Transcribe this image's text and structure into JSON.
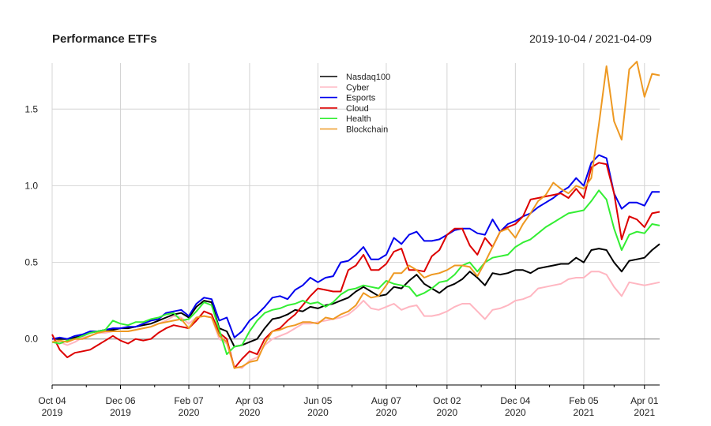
{
  "chart_data": {
    "type": "line",
    "title": "Performance ETFs",
    "date_range": "2019-10-04 / 2021-04-09",
    "xlabel": "",
    "ylabel": "",
    "ylim": [
      -0.3,
      1.8
    ],
    "y_ticks": [
      {
        "value": 0.0,
        "label": "0.0"
      },
      {
        "value": 0.5,
        "label": "0.5"
      },
      {
        "value": 1.0,
        "label": "1.0"
      },
      {
        "value": 1.5,
        "label": "1.5"
      }
    ],
    "x_ticks": [
      {
        "index": 0,
        "label1": "Oct 04",
        "label2": "2019"
      },
      {
        "index": 9,
        "label1": "Dec 06",
        "label2": "2019"
      },
      {
        "index": 18,
        "label1": "Feb 07",
        "label2": "2020"
      },
      {
        "index": 26,
        "label1": "Apr 03",
        "label2": "2020"
      },
      {
        "index": 35,
        "label1": "Jun 05",
        "label2": "2020"
      },
      {
        "index": 44,
        "label1": "Aug 07",
        "label2": "2020"
      },
      {
        "index": 52,
        "label1": "Oct 02",
        "label2": "2020"
      },
      {
        "index": 61,
        "label1": "Dec 04",
        "label2": "2020"
      },
      {
        "index": 70,
        "label1": "Feb 05",
        "label2": "2021"
      },
      {
        "index": 78,
        "label1": "Apr 01",
        "label2": "2021"
      }
    ],
    "grid": true,
    "legend": "top-center",
    "series": [
      {
        "name": "Nasdaq100",
        "color": "#000000",
        "values": [
          0,
          0,
          0,
          0.01,
          0.02,
          0.04,
          0.05,
          0.06,
          0.06,
          0.07,
          0.07,
          0.08,
          0.09,
          0.1,
          0.12,
          0.14,
          0.16,
          0.17,
          0.14,
          0.21,
          0.25,
          0.24,
          0.07,
          0.05,
          -0.05,
          -0.04,
          -0.02,
          0,
          0.07,
          0.13,
          0.14,
          0.16,
          0.19,
          0.18,
          0.21,
          0.2,
          0.22,
          0.23,
          0.25,
          0.27,
          0.31,
          0.34,
          0.31,
          0.28,
          0.29,
          0.34,
          0.33,
          0.38,
          0.42,
          0.36,
          0.33,
          0.3,
          0.34,
          0.36,
          0.39,
          0.44,
          0.4,
          0.35,
          0.43,
          0.42,
          0.43,
          0.45,
          0.45,
          0.43,
          0.46,
          0.47,
          0.48,
          0.49,
          0.49,
          0.53,
          0.5,
          0.58,
          0.59,
          0.58,
          0.5,
          0.44,
          0.51,
          0.52,
          0.53,
          0.58,
          0.62
        ]
      },
      {
        "name": "Cyber",
        "color": "#ffb6c1",
        "values": [
          0,
          -0.02,
          -0.04,
          -0.02,
          0.01,
          0.02,
          0.04,
          0.04,
          0.05,
          0.05,
          0.05,
          0.06,
          0.07,
          0.08,
          0.1,
          0.12,
          0.15,
          0.14,
          0.1,
          0.14,
          0.15,
          0.14,
          0,
          -0.03,
          -0.18,
          -0.19,
          -0.14,
          -0.12,
          -0.04,
          0,
          0.02,
          0.04,
          0.07,
          0.1,
          0.1,
          0.11,
          0.12,
          0.13,
          0.14,
          0.16,
          0.2,
          0.25,
          0.2,
          0.19,
          0.21,
          0.23,
          0.19,
          0.21,
          0.22,
          0.15,
          0.15,
          0.16,
          0.18,
          0.21,
          0.23,
          0.23,
          0.18,
          0.13,
          0.19,
          0.2,
          0.22,
          0.25,
          0.26,
          0.28,
          0.33,
          0.34,
          0.35,
          0.36,
          0.39,
          0.4,
          0.4,
          0.44,
          0.44,
          0.42,
          0.34,
          0.28,
          0.37,
          0.36,
          0.35,
          0.36,
          0.37
        ]
      },
      {
        "name": "Esports",
        "color": "#0000ee",
        "values": [
          0,
          0.01,
          0,
          0.02,
          0.03,
          0.05,
          0.05,
          0.06,
          0.07,
          0.07,
          0.08,
          0.08,
          0.1,
          0.12,
          0.13,
          0.17,
          0.18,
          0.19,
          0.15,
          0.23,
          0.27,
          0.26,
          0.12,
          0.14,
          0.01,
          0.05,
          0.12,
          0.16,
          0.21,
          0.27,
          0.28,
          0.26,
          0.32,
          0.35,
          0.4,
          0.37,
          0.4,
          0.41,
          0.5,
          0.51,
          0.55,
          0.6,
          0.52,
          0.52,
          0.55,
          0.66,
          0.62,
          0.68,
          0.7,
          0.64,
          0.64,
          0.65,
          0.68,
          0.71,
          0.72,
          0.72,
          0.69,
          0.68,
          0.78,
          0.7,
          0.75,
          0.77,
          0.8,
          0.82,
          0.86,
          0.89,
          0.92,
          0.96,
          0.99,
          1.05,
          1.0,
          1.15,
          1.2,
          1.18,
          0.95,
          0.85,
          0.89,
          0.89,
          0.87,
          0.96,
          0.96
        ]
      },
      {
        "name": "Cloud",
        "color": "#dd0000",
        "values": [
          0.03,
          -0.07,
          -0.12,
          -0.09,
          -0.08,
          -0.07,
          -0.04,
          -0.01,
          0.02,
          -0.01,
          -0.03,
          0,
          -0.01,
          0,
          0.04,
          0.07,
          0.09,
          0.08,
          0.07,
          0.12,
          0.18,
          0.16,
          0.04,
          0,
          -0.19,
          -0.13,
          -0.08,
          -0.1,
          0,
          0.05,
          0.07,
          0.12,
          0.16,
          0.22,
          0.28,
          0.33,
          0.32,
          0.31,
          0.31,
          0.45,
          0.48,
          0.55,
          0.45,
          0.45,
          0.49,
          0.57,
          0.59,
          0.45,
          0.45,
          0.44,
          0.54,
          0.58,
          0.68,
          0.72,
          0.72,
          0.61,
          0.55,
          0.66,
          0.6,
          0.7,
          0.73,
          0.75,
          0.8,
          0.91,
          0.92,
          0.93,
          0.94,
          0.95,
          0.92,
          0.98,
          0.92,
          1.12,
          1.15,
          1.14,
          0.95,
          0.65,
          0.8,
          0.78,
          0.73,
          0.82,
          0.83
        ]
      },
      {
        "name": "Health",
        "color": "#33ee33",
        "values": [
          -0.02,
          -0.03,
          -0.01,
          0,
          0.02,
          0.04,
          0.05,
          0.06,
          0.12,
          0.1,
          0.09,
          0.11,
          0.11,
          0.13,
          0.14,
          0.16,
          0.17,
          0.12,
          0.13,
          0.18,
          0.24,
          0.22,
          0.06,
          -0.1,
          -0.05,
          -0.04,
          0.05,
          0.12,
          0.17,
          0.19,
          0.2,
          0.22,
          0.23,
          0.25,
          0.23,
          0.24,
          0.21,
          0.24,
          0.29,
          0.32,
          0.33,
          0.35,
          0.34,
          0.33,
          0.38,
          0.36,
          0.35,
          0.34,
          0.28,
          0.3,
          0.33,
          0.37,
          0.38,
          0.42,
          0.48,
          0.5,
          0.44,
          0.5,
          0.53,
          0.54,
          0.55,
          0.6,
          0.63,
          0.65,
          0.69,
          0.73,
          0.76,
          0.79,
          0.82,
          0.83,
          0.84,
          0.9,
          0.97,
          0.91,
          0.72,
          0.58,
          0.68,
          0.7,
          0.69,
          0.75,
          0.74
        ]
      },
      {
        "name": "Blockchain",
        "color": "#ee9922",
        "values": [
          -0.02,
          -0.01,
          -0.02,
          0,
          0,
          0.02,
          0.04,
          0.05,
          0.05,
          0.05,
          0.05,
          0.06,
          0.07,
          0.08,
          0.1,
          0.11,
          0.12,
          0.13,
          0.07,
          0.14,
          0.15,
          0.14,
          0.02,
          -0.02,
          -0.19,
          -0.18,
          -0.15,
          -0.14,
          -0.03,
          0.05,
          0.06,
          0.08,
          0.09,
          0.11,
          0.11,
          0.1,
          0.14,
          0.13,
          0.16,
          0.18,
          0.22,
          0.3,
          0.27,
          0.28,
          0.35,
          0.43,
          0.43,
          0.48,
          0.45,
          0.4,
          0.42,
          0.43,
          0.45,
          0.48,
          0.48,
          0.47,
          0.41,
          0.5,
          0.6,
          0.7,
          0.72,
          0.66,
          0.75,
          0.82,
          0.9,
          0.94,
          1.02,
          0.98,
          0.95,
          1.0,
          0.98,
          1.05,
          1.4,
          1.78,
          1.42,
          1.3,
          1.76,
          1.81,
          1.58,
          1.73,
          1.72
        ]
      }
    ]
  }
}
